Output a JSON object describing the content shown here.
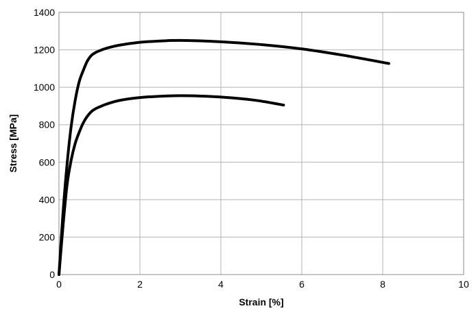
{
  "chart_data": {
    "type": "line",
    "title": "",
    "xlabel": "Strain [%]",
    "ylabel": "Stress [MPa]",
    "xlim": [
      0,
      10
    ],
    "ylim": [
      0,
      1400
    ],
    "xticks": [
      0,
      2,
      4,
      6,
      8,
      10
    ],
    "yticks": [
      0,
      200,
      400,
      600,
      800,
      1000,
      1200,
      1400
    ],
    "grid": true,
    "legend": "none",
    "line_color": "#000000",
    "grid_color": "#b3b3b3",
    "series": [
      {
        "x": [
          0,
          0.1,
          0.2,
          0.3,
          0.4,
          0.5,
          0.6,
          0.7,
          0.8,
          0.9,
          1.0,
          1.2,
          1.5,
          2.0,
          2.5,
          3.0,
          4.0,
          5.0,
          6.0,
          7.0,
          8.15
        ],
        "y": [
          0,
          330,
          590,
          790,
          930,
          1030,
          1090,
          1140,
          1170,
          1185,
          1195,
          1210,
          1225,
          1240,
          1247,
          1250,
          1243,
          1228,
          1205,
          1172,
          1127
        ]
      },
      {
        "x": [
          0,
          0.1,
          0.2,
          0.3,
          0.4,
          0.5,
          0.6,
          0.7,
          0.8,
          0.9,
          1.0,
          1.2,
          1.5,
          2.0,
          2.5,
          3.0,
          3.5,
          4.0,
          4.5,
          5.0,
          5.55
        ],
        "y": [
          0,
          260,
          480,
          610,
          700,
          760,
          810,
          845,
          870,
          885,
          895,
          912,
          930,
          945,
          952,
          955,
          953,
          948,
          939,
          926,
          905
        ]
      }
    ]
  }
}
